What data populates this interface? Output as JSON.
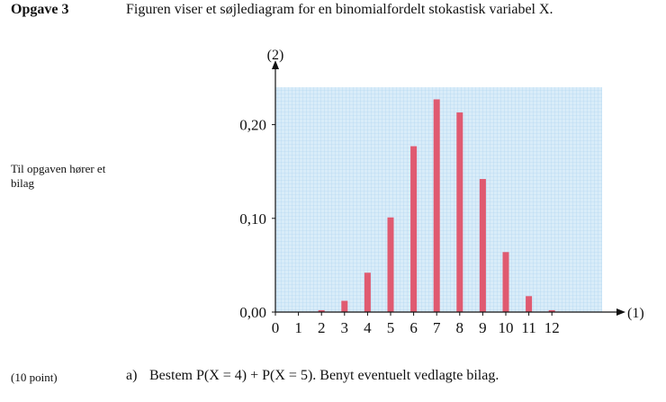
{
  "header": {
    "task_label": "Opgave 3",
    "intro_text": "Figuren viser et søjlediagram for en binomialfordelt stokastisk variabel X."
  },
  "side_note": "Til opgaven hører et bilag",
  "question": {
    "points": "(10 point)",
    "letter": "a)",
    "text": "Bestem P(X = 4) + P(X = 5). Benyt eventuelt vedlagte bilag."
  },
  "colors": {
    "bar": "#e05a70",
    "grid_background": "#d9ecf9",
    "grid_line": "#a9d1ee"
  },
  "chart_data": {
    "type": "bar",
    "xlabel": "(1)",
    "ylabel": "(2)",
    "categories": [
      "0",
      "1",
      "2",
      "3",
      "4",
      "5",
      "6",
      "7",
      "8",
      "9",
      "10",
      "11",
      "12"
    ],
    "values": [
      0.0,
      0.0,
      0.002,
      0.012,
      0.042,
      0.101,
      0.177,
      0.227,
      0.213,
      0.142,
      0.064,
      0.017,
      0.002
    ],
    "ylim": [
      0,
      0.24
    ],
    "yticks": [
      "0,00",
      "0,10",
      "0,20"
    ],
    "ytick_values": [
      0,
      0.1,
      0.2
    ],
    "grid": true
  }
}
